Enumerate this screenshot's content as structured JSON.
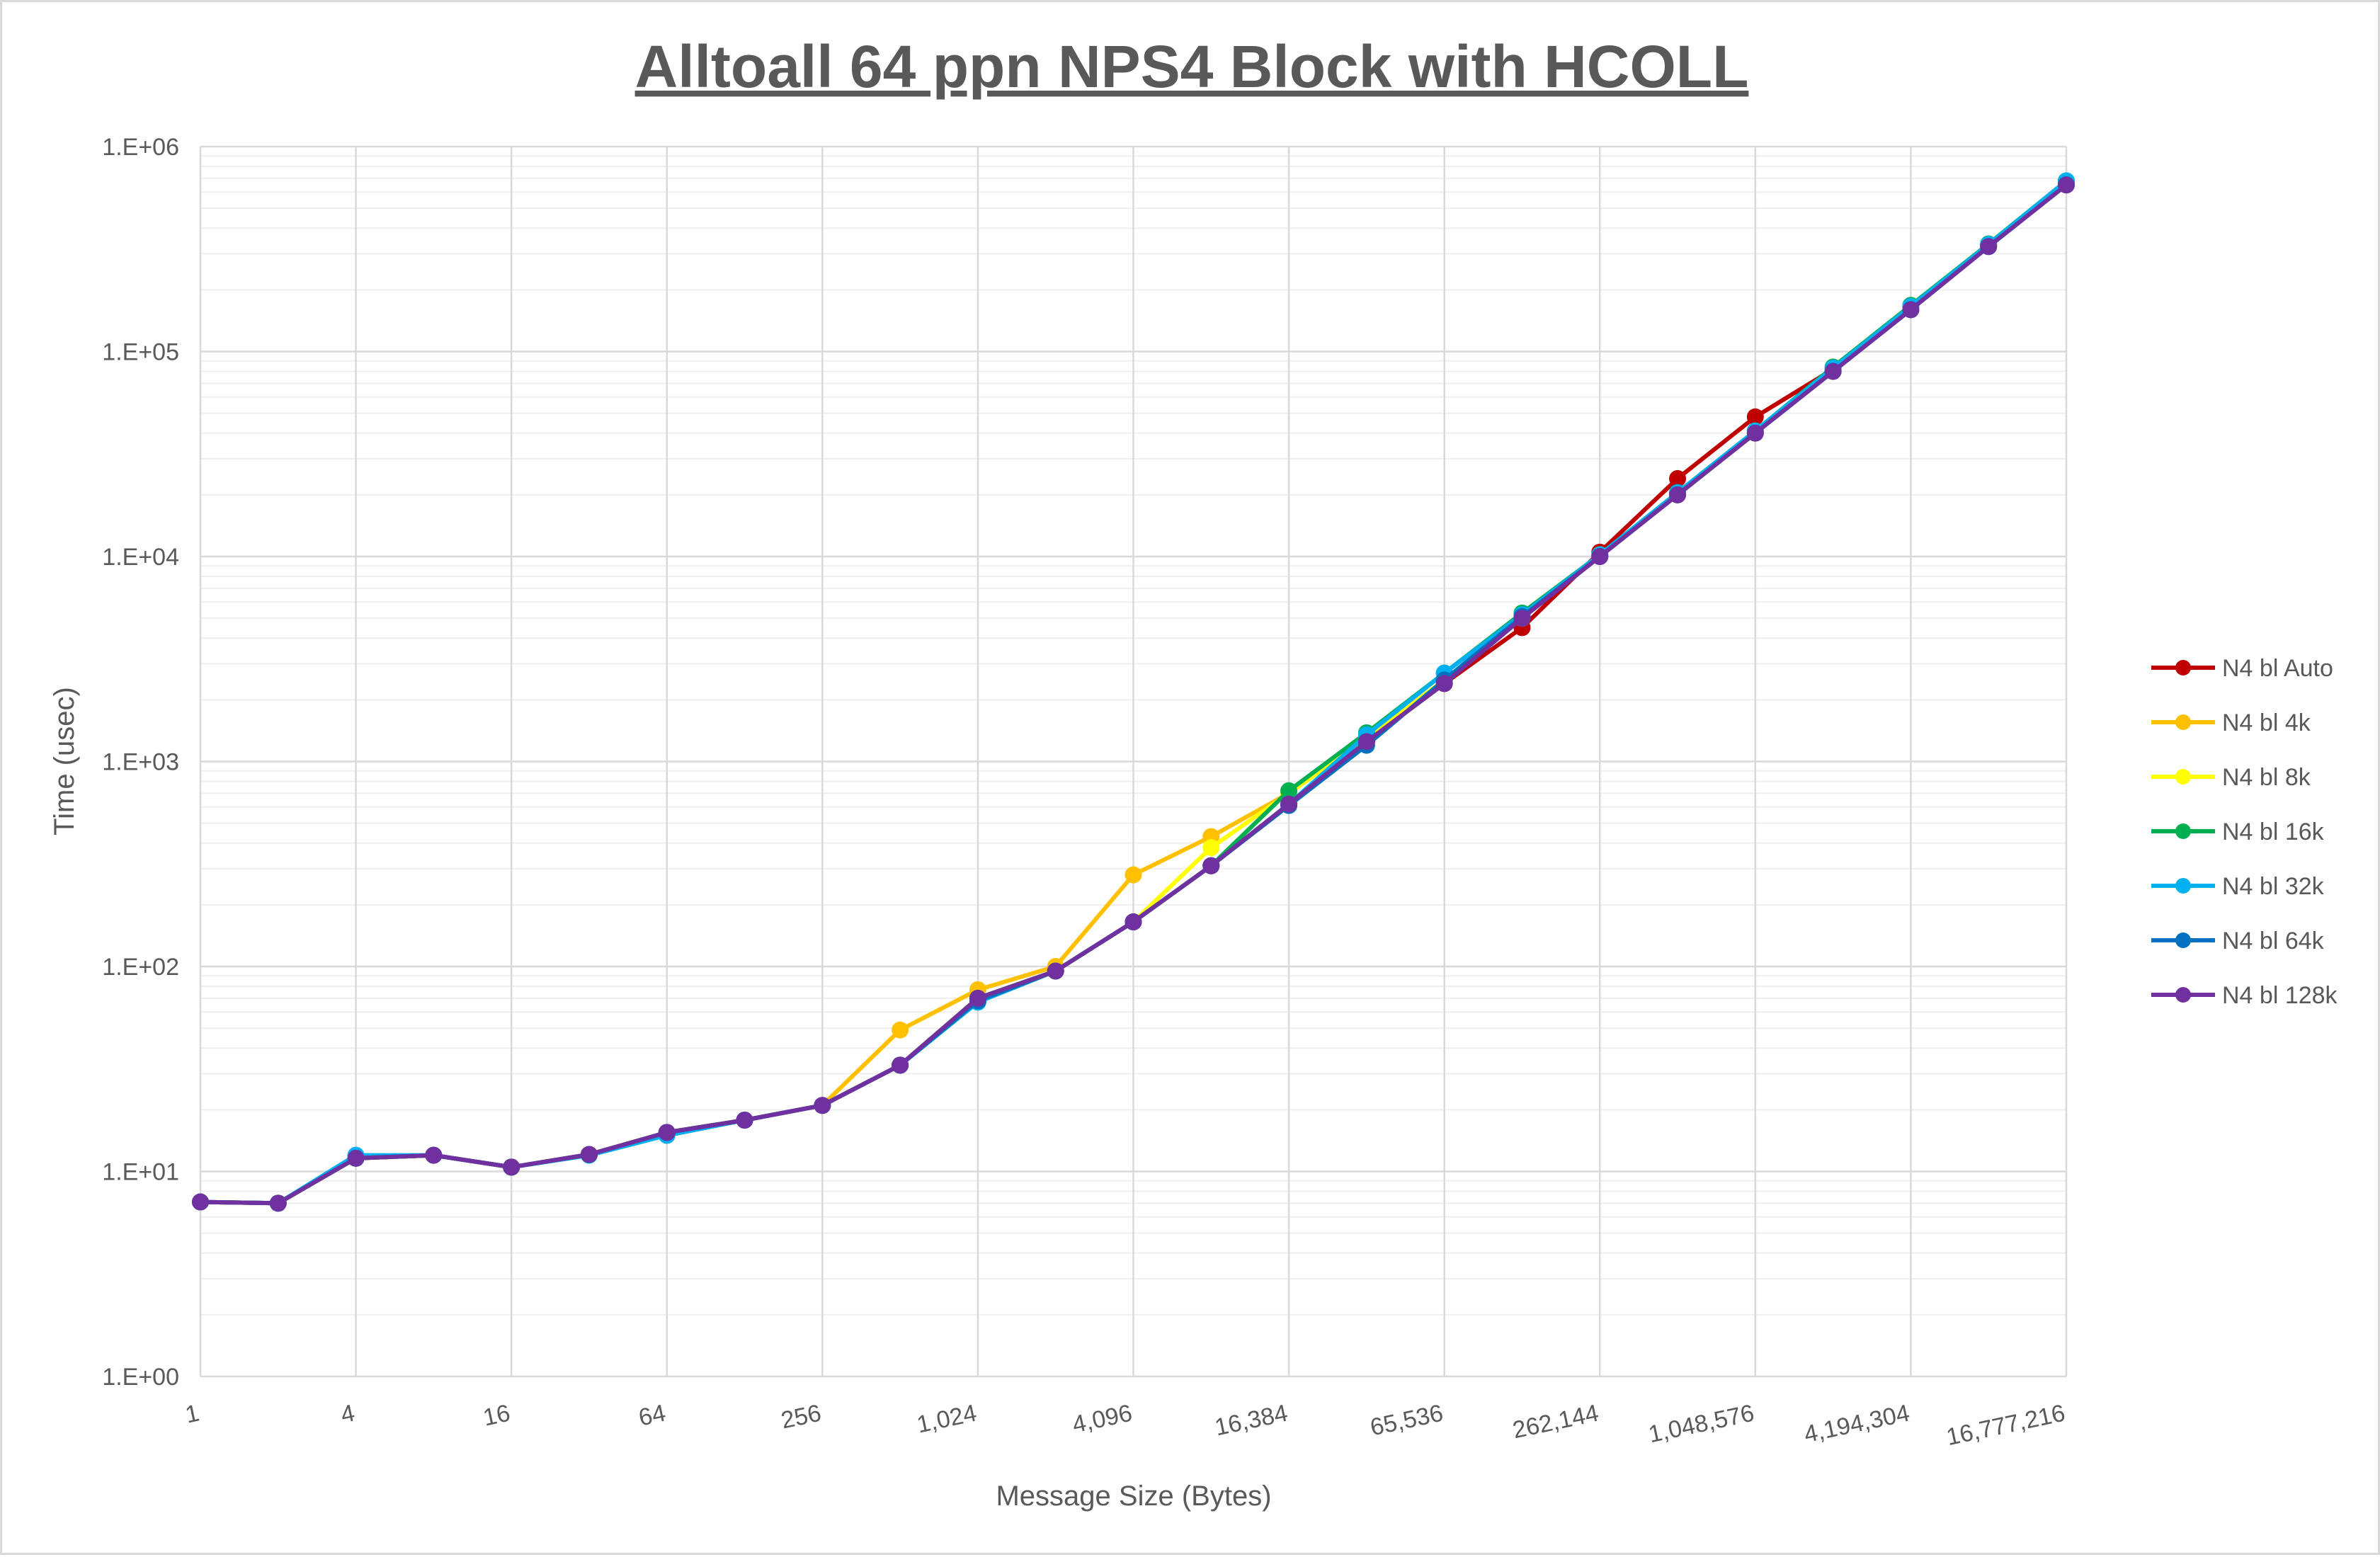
{
  "chart_data": {
    "type": "line",
    "title": "Alltoall 64 ppn NPS4 Block with HCOLL",
    "xlabel": "Message Size (Bytes)",
    "ylabel": "Time (usec)",
    "x_scale": "log2",
    "y_scale": "log10",
    "ylim": [
      1,
      1000000
    ],
    "xlim": [
      1,
      16777216
    ],
    "grid": true,
    "legend_position": "right",
    "x_tick_labels": [
      "1",
      "4",
      "16",
      "64",
      "256",
      "1,024",
      "4,096",
      "16,384",
      "65,536",
      "262,144",
      "1,048,576",
      "4,194,304",
      "16,777,216"
    ],
    "y_tick_labels": [
      "1.E+00",
      "1.E+01",
      "1.E+02",
      "1.E+03",
      "1.E+04",
      "1.E+05",
      "1.E+06"
    ],
    "x": [
      1,
      2,
      4,
      8,
      16,
      32,
      64,
      128,
      256,
      512,
      1024,
      2048,
      4096,
      8192,
      16384,
      32768,
      65536,
      131072,
      262144,
      524288,
      1048576,
      2097152,
      4194304,
      8388608,
      16777216
    ],
    "series": [
      {
        "name": "N4 bl Auto",
        "color": "#c00000",
        "values": [
          7.1,
          7.0,
          11.6,
          12.0,
          10.5,
          12.1,
          15.5,
          17.8,
          21,
          33,
          70,
          95,
          165,
          310,
          620,
          1250,
          2400,
          4500,
          10500,
          24000,
          48000,
          82000,
          165000,
          330000,
          650000
        ]
      },
      {
        "name": "N4 bl 4k",
        "color": "#ffc000",
        "values": [
          7.1,
          7.0,
          11.6,
          12.0,
          10.5,
          12.1,
          15.5,
          17.8,
          21,
          49,
          77,
          100,
          280,
          430,
          700,
          1300,
          2500,
          5000,
          10200,
          20000,
          40000,
          82000,
          165000,
          330000,
          660000
        ]
      },
      {
        "name": "N4 bl 8k",
        "color": "#ffff00",
        "values": [
          7.1,
          7.0,
          11.6,
          12.0,
          10.5,
          12.1,
          15.5,
          17.8,
          21,
          33,
          70,
          95,
          165,
          380,
          700,
          1300,
          2500,
          5000,
          10200,
          20000,
          40000,
          82000,
          165000,
          330000,
          660000
        ]
      },
      {
        "name": "N4 bl 16k",
        "color": "#00b050",
        "values": [
          7.1,
          7.0,
          11.6,
          12.0,
          10.5,
          12.1,
          15.5,
          17.8,
          21,
          33,
          70,
          95,
          165,
          310,
          720,
          1380,
          2700,
          5300,
          10200,
          20500,
          41000,
          84000,
          168000,
          335000,
          680000
        ]
      },
      {
        "name": "N4 bl 32k",
        "color": "#00b0f0",
        "values": [
          7.1,
          7.0,
          12.0,
          12.0,
          10.5,
          12.0,
          15.0,
          17.8,
          21,
          33,
          67,
          95,
          165,
          310,
          620,
          1350,
          2700,
          5200,
          10200,
          20500,
          41000,
          83000,
          166000,
          333000,
          680000
        ]
      },
      {
        "name": "N4 bl 64k",
        "color": "#0070c0",
        "values": [
          7.1,
          7.0,
          11.6,
          12.0,
          10.5,
          12.1,
          15.5,
          17.8,
          21,
          33,
          68,
          95,
          165,
          310,
          610,
          1200,
          2500,
          5100,
          10000,
          20000,
          40000,
          80000,
          160000,
          325000,
          650000
        ]
      },
      {
        "name": "N4 bl 128k",
        "color": "#7030a0",
        "values": [
          7.1,
          7.0,
          11.6,
          12.0,
          10.5,
          12.1,
          15.5,
          17.8,
          21,
          33,
          70,
          95,
          165,
          310,
          620,
          1250,
          2400,
          5000,
          10000,
          20000,
          40000,
          80000,
          160000,
          325000,
          650000
        ]
      }
    ]
  }
}
